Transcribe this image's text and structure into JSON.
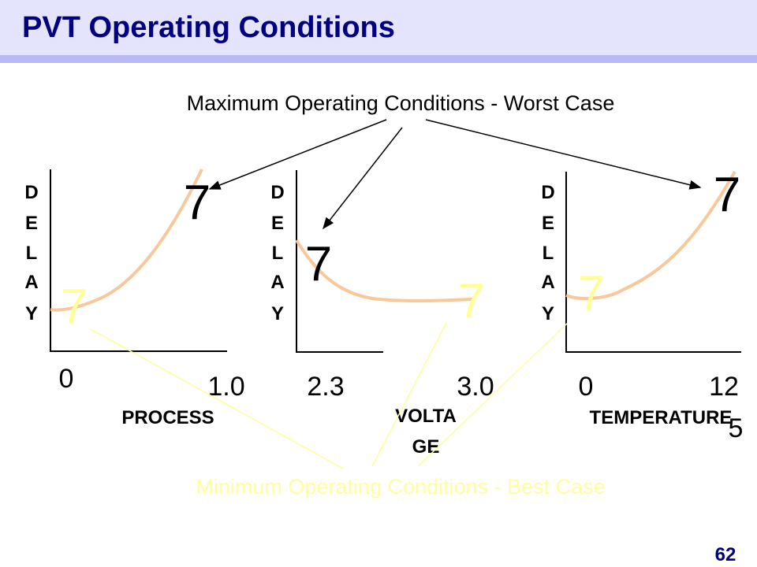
{
  "title": "PVT Operating Conditions",
  "max_label": "Maximum Operating Conditions - Worst Case",
  "min_label": "Minimum Operating Conditions - Best Case",
  "page_number": "62",
  "marker_glyph": "7",
  "colors": {
    "title": "#000080",
    "curve": "#f9c89a",
    "best_case": "#ffff99",
    "header_bg": "#e4e4fc",
    "header_bar": "#b9b9f5"
  },
  "graphs": [
    {
      "y_label": [
        "D",
        "E",
        "L",
        "A",
        "Y"
      ],
      "x_label": "PROCESS",
      "x_min": "0",
      "x_max": "1.0"
    },
    {
      "y_label": [
        "D",
        "E",
        "L",
        "A",
        "Y"
      ],
      "x_label_lines": [
        "VOLTA",
        "GE"
      ],
      "x_min": "2.3",
      "x_max": "3.0"
    },
    {
      "y_label": [
        "D",
        "E",
        "L",
        "A",
        "Y"
      ],
      "x_label": "TEMPERATURE",
      "x_min": "0",
      "x_max_lines": [
        "12",
        "5"
      ]
    }
  ]
}
